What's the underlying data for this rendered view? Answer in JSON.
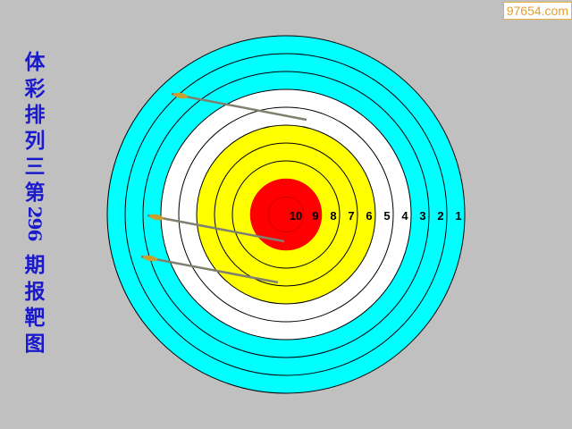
{
  "title_chars": [
    "体",
    "彩",
    "排",
    "列",
    "三",
    "第",
    "296",
    "期",
    "报",
    "靶",
    "图"
  ],
  "watermark": "97654.com",
  "target": {
    "rings": [
      {
        "score": "1",
        "color": "#00ffff"
      },
      {
        "score": "2",
        "color": "#00ffff"
      },
      {
        "score": "3",
        "color": "#00ffff"
      },
      {
        "score": "4",
        "color": "#ffffff"
      },
      {
        "score": "5",
        "color": "#ffffff"
      },
      {
        "score": "6",
        "color": "#ffff00"
      },
      {
        "score": "7",
        "color": "#ffff00"
      },
      {
        "score": "8",
        "color": "#ffff00"
      },
      {
        "score": "9",
        "color": "#ff0000"
      },
      {
        "score": "10",
        "color": "#ff0000"
      }
    ],
    "arrow_count": 3
  }
}
